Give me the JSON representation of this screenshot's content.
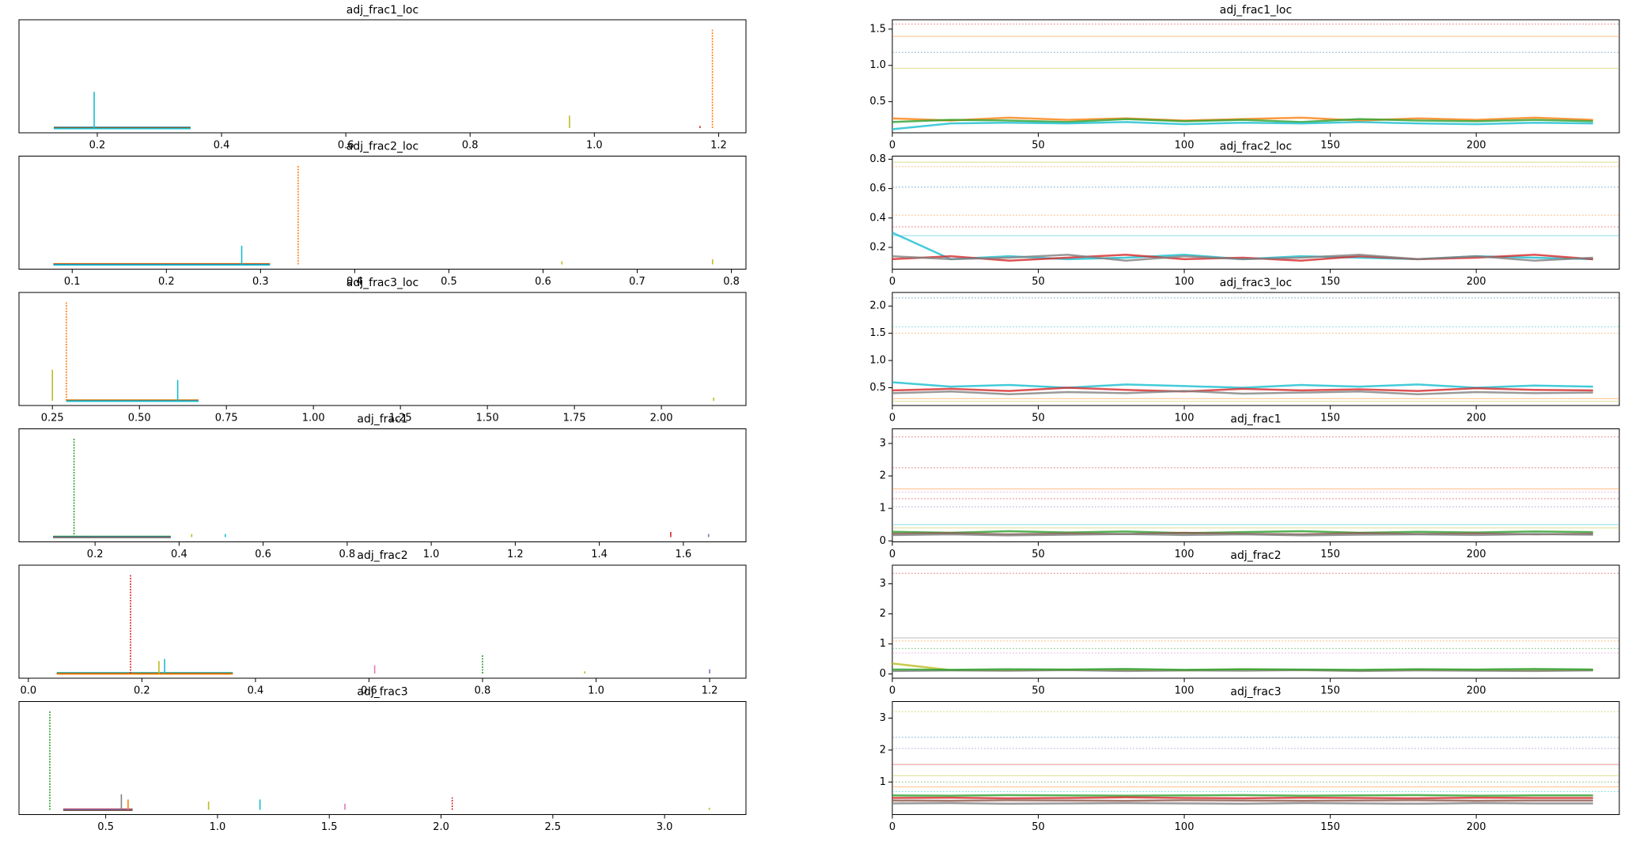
{
  "chart_data": [
    {
      "type": "spikes",
      "title": "adj_frac1_loc",
      "xlim": [
        0.074,
        1.244
      ],
      "ylim": [
        0,
        1
      ],
      "xticks": [
        0.2,
        0.4,
        0.6,
        0.8,
        {
          "value": 1,
          "label": "1.0"
        },
        1.2
      ],
      "base": [
        0.13,
        0.35
      ],
      "base_colors": [
        "#1f77b4",
        "#2ca02c",
        "#d62728",
        "#17becf"
      ],
      "spikes": {
        "x": [
          0.195,
          0.96,
          1.19,
          1.17
        ],
        "values": [
          0.35,
          0.12,
          0.95,
          0.02
        ],
        "colors": [
          "#17becf",
          "#bcbd22",
          "#ff7f0e",
          "#d62728"
        ],
        "styles": [
          "solid",
          "solid",
          "dotted",
          "solid"
        ]
      }
    },
    {
      "type": "trace",
      "title": "adj_frac1_loc",
      "xlim": [
        0,
        249
      ],
      "xticks": [
        0,
        50,
        100,
        150,
        200
      ],
      "ylim": [
        0.071,
        1.629
      ],
      "yticks": [
        0.5,
        {
          "value": 1,
          "label": "1.0"
        },
        1.5
      ],
      "x": [
        0,
        20,
        40,
        60,
        80,
        100,
        120,
        140,
        160,
        180,
        200,
        220,
        240
      ],
      "series": [
        {
          "color": "#ff7f0e",
          "values": [
            0.27,
            0.24,
            0.28,
            0.25,
            0.27,
            0.24,
            0.26,
            0.28,
            0.24,
            0.27,
            0.25,
            0.28,
            0.25
          ]
        },
        {
          "color": "#2ca02c",
          "values": [
            0.22,
            0.25,
            0.24,
            0.22,
            0.26,
            0.23,
            0.25,
            0.22,
            0.26,
            0.24,
            0.23,
            0.25,
            0.23
          ]
        },
        {
          "color": "#17becf",
          "values": [
            0.12,
            0.2,
            0.21,
            0.2,
            0.22,
            0.19,
            0.21,
            0.2,
            0.22,
            0.2,
            0.19,
            0.21,
            0.2
          ]
        }
      ],
      "hlines": {
        "values": [
          1.57,
          1.4,
          1.18,
          0.96
        ],
        "colors": [
          "#d62728",
          "#ff7f0e",
          "#1f77b4",
          "#bcbd22"
        ],
        "styles": [
          "dotted",
          "solid",
          "dotted",
          "solid"
        ]
      }
    },
    {
      "type": "spikes",
      "title": "adj_frac2_loc",
      "xlim": [
        0.0435,
        0.8155
      ],
      "ylim": [
        0,
        1
      ],
      "xticks": [
        0.1,
        0.2,
        0.3,
        0.4,
        0.5,
        0.6,
        0.7,
        0.8
      ],
      "base": [
        0.08,
        0.31
      ],
      "base_colors": [
        "#bcbd22",
        "#d62728",
        "#1f77b4",
        "#17becf"
      ],
      "spikes": {
        "x": [
          0.28,
          0.34,
          0.62,
          0.78
        ],
        "values": [
          0.18,
          0.95,
          0.03,
          0.05
        ],
        "colors": [
          "#17becf",
          "#ff7f0e",
          "#bcbd22",
          "#bcbd22"
        ],
        "styles": [
          "solid",
          "dotted",
          "solid",
          "solid"
        ]
      }
    },
    {
      "type": "trace",
      "title": "adj_frac2_loc",
      "xlim": [
        0,
        249
      ],
      "xticks": [
        0,
        50,
        100,
        150,
        200
      ],
      "ylim": [
        0.052,
        0.821
      ],
      "yticks": [
        0.2,
        0.4,
        0.6,
        0.8
      ],
      "x": [
        0,
        20,
        40,
        60,
        80,
        100,
        120,
        140,
        160,
        180,
        200,
        220,
        240
      ],
      "series": [
        {
          "color": "#17becf",
          "values": [
            0.3,
            0.12,
            0.14,
            0.12,
            0.13,
            0.15,
            0.12,
            0.14,
            0.13,
            0.12,
            0.14,
            0.13,
            0.12
          ]
        },
        {
          "color": "#d62728",
          "values": [
            0.12,
            0.14,
            0.11,
            0.13,
            0.15,
            0.12,
            0.13,
            0.11,
            0.14,
            0.12,
            0.13,
            0.15,
            0.12
          ]
        },
        {
          "color": "#7f7f7f",
          "values": [
            0.14,
            0.12,
            0.13,
            0.15,
            0.11,
            0.14,
            0.12,
            0.13,
            0.15,
            0.12,
            0.14,
            0.11,
            0.13
          ]
        }
      ],
      "hlines": {
        "values": [
          0.78,
          0.75,
          0.61,
          0.42,
          0.34,
          0.28
        ],
        "colors": [
          "#bcbd22",
          "#ff7f0e",
          "#1f77b4",
          "#ff7f0e",
          "#d62728",
          "#17becf"
        ],
        "styles": [
          "solid",
          "dotted",
          "dotted",
          "dotted",
          "dotted",
          "solid"
        ]
      }
    },
    {
      "type": "spikes",
      "title": "adj_frac3_loc",
      "xlim": [
        0.154,
        2.243
      ],
      "ylim": [
        0,
        1
      ],
      "xticks": [
        0.25,
        {
          "value": 0.5,
          "label": "0.50"
        },
        0.75,
        {
          "value": 1,
          "label": "1.00"
        },
        1.25,
        {
          "value": 1.5,
          "label": "1.50"
        },
        1.75,
        {
          "value": 2,
          "label": "2.00"
        }
      ],
      "base": [
        0.29,
        0.67
      ],
      "base_colors": [
        "#ff7f0e",
        "#2ca02c",
        "#9467bd",
        "#17becf"
      ],
      "spikes": {
        "x": [
          0.25,
          0.29,
          0.61,
          2.15
        ],
        "values": [
          0.3,
          0.95,
          0.2,
          0.03
        ],
        "colors": [
          "#bcbd22",
          "#ff7f0e",
          "#17becf",
          "#bcbd22"
        ],
        "styles": [
          "solid",
          "dotted",
          "solid",
          "solid"
        ]
      }
    },
    {
      "type": "trace",
      "title": "adj_frac3_loc",
      "xlim": [
        0,
        249
      ],
      "xticks": [
        0,
        50,
        100,
        150,
        200
      ],
      "ylim": [
        0.173,
        2.25
      ],
      "yticks": [
        0.5,
        {
          "value": 1,
          "label": "1.0"
        },
        1.5,
        {
          "value": 2,
          "label": "2.0"
        }
      ],
      "x": [
        0,
        20,
        40,
        60,
        80,
        100,
        120,
        140,
        160,
        180,
        200,
        220,
        240
      ],
      "series": [
        {
          "color": "#17becf",
          "values": [
            0.6,
            0.52,
            0.55,
            0.5,
            0.56,
            0.53,
            0.5,
            0.55,
            0.52,
            0.56,
            0.5,
            0.54,
            0.52
          ]
        },
        {
          "color": "#d62728",
          "values": [
            0.45,
            0.48,
            0.44,
            0.5,
            0.46,
            0.43,
            0.48,
            0.45,
            0.47,
            0.44,
            0.49,
            0.46,
            0.45
          ]
        },
        {
          "color": "#7f7f7f",
          "values": [
            0.4,
            0.43,
            0.38,
            0.42,
            0.4,
            0.44,
            0.39,
            0.41,
            0.43,
            0.38,
            0.42,
            0.4,
            0.41
          ]
        }
      ],
      "hlines": {
        "values": [
          2.15,
          1.62,
          1.5,
          0.3,
          0.25
        ],
        "colors": [
          "#1f77b4",
          "#17becf",
          "#ff7f0e",
          "#ff7f0e",
          "#bcbd22"
        ],
        "styles": [
          "dotted",
          "dotted",
          "dotted",
          "solid",
          "solid"
        ]
      }
    },
    {
      "type": "spikes",
      "title": "adj_frac1",
      "xlim": [
        0.019,
        1.749
      ],
      "ylim": [
        0,
        1
      ],
      "xticks": [
        0.2,
        0.4,
        0.6,
        0.8,
        {
          "value": 1,
          "label": "1.0"
        },
        1.2,
        1.4,
        1.6
      ],
      "base": [
        0.1,
        0.38
      ],
      "base_colors": [
        "#2ca02c",
        "#1f77b4",
        "#8c564b",
        "#7f7f7f"
      ],
      "spikes": {
        "x": [
          0.15,
          0.43,
          0.51,
          1.57,
          1.66
        ],
        "values": [
          0.95,
          0.03,
          0.03,
          0.05,
          0.03
        ],
        "colors": [
          "#2ca02c",
          "#bcbd22",
          "#17becf",
          "#d62728",
          "#9467bd"
        ],
        "styles": [
          "dotted",
          "solid",
          "solid",
          "solid",
          "solid"
        ]
      }
    },
    {
      "type": "trace",
      "title": "adj_frac1",
      "xlim": [
        0,
        249
      ],
      "xticks": [
        0,
        50,
        100,
        150,
        200
      ],
      "ylim": [
        -0.03,
        3.45
      ],
      "yticks": [
        0,
        1,
        2,
        3
      ],
      "x": [
        0,
        20,
        40,
        60,
        80,
        100,
        120,
        140,
        160,
        180,
        200,
        220,
        240
      ],
      "series": [
        {
          "color": "#2ca02c",
          "values": [
            0.28,
            0.25,
            0.3,
            0.26,
            0.29,
            0.24,
            0.27,
            0.3,
            0.25,
            0.28,
            0.26,
            0.29,
            0.27
          ]
        },
        {
          "color": "#8c564b",
          "values": [
            0.22,
            0.24,
            0.2,
            0.23,
            0.21,
            0.25,
            0.22,
            0.2,
            0.24,
            0.21,
            0.23,
            0.2,
            0.22
          ]
        },
        {
          "color": "#7f7f7f",
          "values": [
            0.18,
            0.2,
            0.17,
            0.19,
            0.21,
            0.18,
            0.2,
            0.17,
            0.19,
            0.2,
            0.18,
            0.21,
            0.19
          ]
        }
      ],
      "hlines": {
        "values": [
          3.2,
          2.25,
          1.6,
          1.5,
          1.3,
          1.05,
          0.5,
          0.4
        ],
        "colors": [
          "#d62728",
          "#d62728",
          "#ff7f0e",
          "#e377c2",
          "#d62728",
          "#9467bd",
          "#17becf",
          "#bcbd22"
        ],
        "styles": [
          "dotted",
          "dotted",
          "solid",
          "dotted",
          "dotted",
          "dotted",
          "solid",
          "solid"
        ]
      }
    },
    {
      "type": "spikes",
      "title": "adj_frac2",
      "xlim": [
        -0.0165,
        1.264
      ],
      "ylim": [
        0,
        1
      ],
      "xticks": [
        {
          "value": 0,
          "label": "0.0"
        },
        0.2,
        0.4,
        0.6,
        0.8,
        {
          "value": 1,
          "label": "1.0"
        },
        1.2
      ],
      "base": [
        0.05,
        0.36
      ],
      "base_colors": [
        "#17becf",
        "#2ca02c",
        "#d62728",
        "#ff7f0e"
      ],
      "spikes": {
        "x": [
          0.18,
          0.23,
          0.24,
          0.61,
          0.8,
          0.98,
          1.2
        ],
        "values": [
          0.95,
          0.12,
          0.14,
          0.08,
          0.18,
          0.02,
          0.04
        ],
        "colors": [
          "#d62728",
          "#bcbd22",
          "#17becf",
          "#e377c2",
          "#2ca02c",
          "#bcbd22",
          "#9467bd"
        ],
        "styles": [
          "dotted",
          "solid",
          "solid",
          "solid",
          "dotted",
          "solid",
          "solid"
        ]
      }
    },
    {
      "type": "trace",
      "title": "adj_frac2",
      "xlim": [
        0,
        249
      ],
      "xticks": [
        0,
        50,
        100,
        150,
        200
      ],
      "ylim": [
        -0.14,
        3.62
      ],
      "yticks": [
        0,
        1,
        2,
        3
      ],
      "x": [
        0,
        20,
        40,
        60,
        80,
        100,
        120,
        140,
        160,
        180,
        200,
        220,
        240
      ],
      "series": [
        {
          "color": "#bcbd22",
          "values": [
            0.35,
            0.13,
            0.12,
            0.14,
            0.13,
            0.12,
            0.15,
            0.13,
            0.12,
            0.14,
            0.13,
            0.12,
            0.14
          ]
        },
        {
          "color": "#7f7f7f",
          "values": [
            0.1,
            0.12,
            0.11,
            0.13,
            0.1,
            0.12,
            0.11,
            0.13,
            0.1,
            0.12,
            0.11,
            0.1,
            0.12
          ]
        },
        {
          "color": "#2ca02c",
          "values": [
            0.15,
            0.14,
            0.16,
            0.15,
            0.17,
            0.14,
            0.16,
            0.15,
            0.14,
            0.16,
            0.15,
            0.17,
            0.15
          ]
        }
      ],
      "hlines": {
        "values": [
          3.35,
          1.2,
          1.1,
          0.85,
          0.7
        ],
        "colors": [
          "#d62728",
          "#7f7f7f",
          "#ff7f0e",
          "#2ca02c",
          "#e377c2"
        ],
        "styles": [
          "dotted",
          "solid",
          "dotted",
          "dotted",
          "dotted"
        ]
      }
    },
    {
      "type": "spikes",
      "title": "adj_frac3",
      "xlim": [
        0.112,
        3.364
      ],
      "ylim": [
        0,
        1
      ],
      "xticks": [
        0.5,
        {
          "value": 1,
          "label": "1.0"
        },
        1.5,
        {
          "value": 2,
          "label": "2.0"
        },
        2.5,
        {
          "value": 3,
          "label": "3.0"
        }
      ],
      "base": [
        0.31,
        0.62
      ],
      "base_colors": [
        "#d62728",
        "#9467bd",
        "#1f77b4",
        "#8c564b"
      ],
      "spikes": {
        "x": [
          0.25,
          0.57,
          0.6,
          0.96,
          1.19,
          1.57,
          2.05,
          3.2
        ],
        "values": [
          0.95,
          0.15,
          0.1,
          0.08,
          0.1,
          0.06,
          0.12,
          0.02
        ],
        "colors": [
          "#2ca02c",
          "#7f7f7f",
          "#ff7f0e",
          "#bcbd22",
          "#17becf",
          "#e377c2",
          "#d62728",
          "#bcbd22"
        ],
        "styles": [
          "dotted",
          "solid",
          "solid",
          "solid",
          "solid",
          "solid",
          "dotted",
          "solid"
        ]
      }
    },
    {
      "type": "trace",
      "title": "adj_frac3",
      "xlim": [
        0,
        249
      ],
      "xticks": [
        0,
        50,
        100,
        150,
        200
      ],
      "ylim": [
        -0.02,
        3.52
      ],
      "yticks": [
        1,
        2,
        3
      ],
      "x": [
        0,
        20,
        40,
        60,
        80,
        100,
        120,
        140,
        160,
        180,
        200,
        220,
        240
      ],
      "series": [
        {
          "color": "#2ca02c",
          "values": [
            0.58,
            0.57,
            0.59,
            0.58,
            0.57,
            0.58,
            0.59,
            0.57,
            0.58,
            0.59,
            0.57,
            0.58,
            0.58
          ]
        },
        {
          "color": "#d62728",
          "values": [
            0.5,
            0.51,
            0.49,
            0.5,
            0.52,
            0.5,
            0.49,
            0.51,
            0.5,
            0.49,
            0.51,
            0.5,
            0.5
          ]
        },
        {
          "color": "#8c564b",
          "values": [
            0.42,
            0.41,
            0.43,
            0.42,
            0.41,
            0.43,
            0.42,
            0.41,
            0.42,
            0.43,
            0.41,
            0.42,
            0.42
          ]
        },
        {
          "color": "#7f7f7f",
          "values": [
            0.33,
            0.34,
            0.32,
            0.33,
            0.34,
            0.33,
            0.32,
            0.34,
            0.33,
            0.32,
            0.34,
            0.33,
            0.33
          ]
        }
      ],
      "hlines": {
        "values": [
          3.2,
          2.4,
          2.05,
          1.55,
          1.2,
          1.0,
          0.85,
          0.7
        ],
        "colors": [
          "#bcbd22",
          "#1f77b4",
          "#9467bd",
          "#d62728",
          "#bcbd22",
          "#2ca02c",
          "#ff7f0e",
          "#17becf"
        ],
        "styles": [
          "dotted",
          "dotted",
          "dotted",
          "solid",
          "solid",
          "dotted",
          "solid",
          "dotted"
        ]
      }
    }
  ]
}
